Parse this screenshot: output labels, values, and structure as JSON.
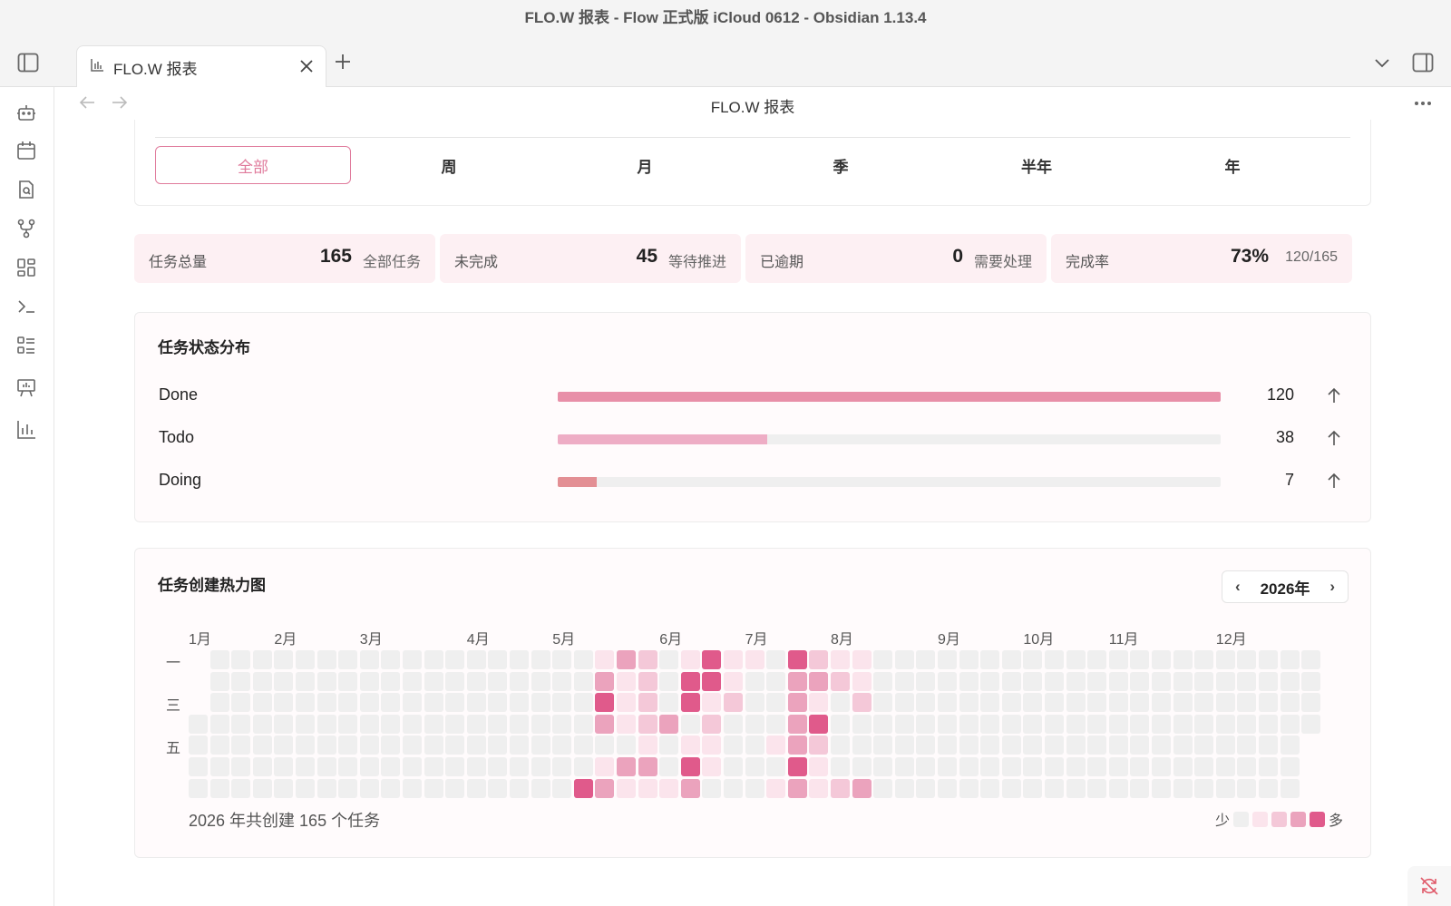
{
  "window": {
    "title": "FLO.W 报表 - Flow 正式版 iCloud 0612 - Obsidian 1.13.4"
  },
  "tab": {
    "label": "FLO.W 报表"
  },
  "view": {
    "title": "FLO.W 报表"
  },
  "ribbon": {
    "icons": [
      "bot-icon",
      "calendar-icon",
      "file-search-icon",
      "git-fork-icon",
      "layout-dashboard-icon",
      "terminal-icon",
      "list-checks-icon",
      "presentation-icon",
      "bar-chart-icon"
    ]
  },
  "periods": [
    {
      "label": "全部",
      "active": true
    },
    {
      "label": "周",
      "active": false
    },
    {
      "label": "月",
      "active": false
    },
    {
      "label": "季",
      "active": false
    },
    {
      "label": "半年",
      "active": false
    },
    {
      "label": "年",
      "active": false
    }
  ],
  "stats": [
    {
      "label": "任务总量",
      "value": "165",
      "sub": "全部任务"
    },
    {
      "label": "未完成",
      "value": "45",
      "sub": "等待推进"
    },
    {
      "label": "已逾期",
      "value": "0",
      "sub": "需要处理"
    },
    {
      "label": "完成率",
      "value": "73%",
      "sub": "120/165"
    }
  ],
  "status_distribution": {
    "title": "任务状态分布",
    "max": 120,
    "rows": [
      {
        "name": "Done",
        "count": "120",
        "value": 120,
        "color": "#e88fa8"
      },
      {
        "name": "Todo",
        "count": "38",
        "value": 38,
        "color": "#eeadc5"
      },
      {
        "name": "Doing",
        "count": "7",
        "value": 7,
        "color": "#e38f94"
      }
    ]
  },
  "heatmap": {
    "title": "任务创建热力图",
    "year_label": "2026年",
    "prev": "‹",
    "next": "›",
    "months": [
      "1月",
      "2月",
      "3月",
      "4月",
      "5月",
      "6月",
      "7月",
      "8月",
      "9月",
      "10月",
      "11月",
      "12月"
    ],
    "day_labels": [
      "一",
      "三",
      "五"
    ],
    "summary": "2026 年共创建 165 个任务",
    "legend_less": "少",
    "legend_more": "多",
    "palette": [
      "#efefef",
      "#fbe4ec",
      "#f4c8d8",
      "#eba3bd",
      "#e05a8b"
    ],
    "active_cells": [
      [
        19,
        0,
        1
      ],
      [
        20,
        0,
        3
      ],
      [
        21,
        0,
        2
      ],
      [
        23,
        0,
        1
      ],
      [
        24,
        0,
        4
      ],
      [
        25,
        0,
        1
      ],
      [
        26,
        0,
        1
      ],
      [
        28,
        0,
        4
      ],
      [
        29,
        0,
        2
      ],
      [
        30,
        0,
        1
      ],
      [
        31,
        0,
        1
      ],
      [
        19,
        1,
        3
      ],
      [
        20,
        1,
        1
      ],
      [
        21,
        1,
        2
      ],
      [
        23,
        1,
        4
      ],
      [
        24,
        1,
        4
      ],
      [
        25,
        1,
        1
      ],
      [
        28,
        1,
        3
      ],
      [
        29,
        1,
        3
      ],
      [
        30,
        1,
        2
      ],
      [
        31,
        1,
        1
      ],
      [
        19,
        2,
        4
      ],
      [
        20,
        2,
        1
      ],
      [
        21,
        2,
        2
      ],
      [
        23,
        2,
        4
      ],
      [
        24,
        2,
        1
      ],
      [
        25,
        2,
        2
      ],
      [
        28,
        2,
        3
      ],
      [
        29,
        2,
        1
      ],
      [
        31,
        2,
        2
      ],
      [
        19,
        3,
        3
      ],
      [
        20,
        3,
        1
      ],
      [
        21,
        3,
        2
      ],
      [
        22,
        3,
        3
      ],
      [
        24,
        3,
        2
      ],
      [
        28,
        3,
        3
      ],
      [
        29,
        3,
        4
      ],
      [
        21,
        4,
        1
      ],
      [
        23,
        4,
        1
      ],
      [
        24,
        4,
        1
      ],
      [
        27,
        4,
        1
      ],
      [
        28,
        4,
        3
      ],
      [
        29,
        4,
        2
      ],
      [
        19,
        5,
        1
      ],
      [
        20,
        5,
        3
      ],
      [
        21,
        5,
        3
      ],
      [
        23,
        5,
        4
      ],
      [
        24,
        5,
        1
      ],
      [
        28,
        5,
        4
      ],
      [
        29,
        5,
        1
      ],
      [
        18,
        6,
        4
      ],
      [
        19,
        6,
        3
      ],
      [
        20,
        6,
        1
      ],
      [
        21,
        6,
        1
      ],
      [
        22,
        6,
        1
      ],
      [
        23,
        6,
        3
      ],
      [
        27,
        6,
        1
      ],
      [
        28,
        6,
        3
      ],
      [
        29,
        6,
        1
      ],
      [
        30,
        6,
        2
      ],
      [
        31,
        6,
        3
      ]
    ]
  }
}
